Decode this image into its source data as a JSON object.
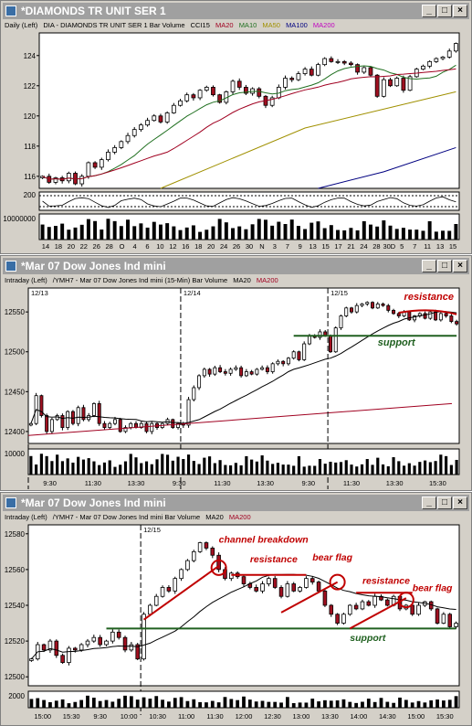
{
  "windows": [
    {
      "title": "*DIAMONDS TR UNIT SER 1",
      "info": [
        {
          "text": "Daily  (Left)",
          "color": "#000000"
        },
        {
          "text": "DIA - DIAMONDS TR UNIT SER 1  Bar  Volume",
          "color": "#000000"
        },
        {
          "text": "CCI15",
          "color": "#000000"
        },
        {
          "text": "MA20",
          "color": "#a00020"
        },
        {
          "text": "MA10",
          "color": "#207020"
        },
        {
          "text": "MA50",
          "color": "#a09000"
        },
        {
          "text": "MA100",
          "color": "#000080"
        },
        {
          "text": "MA200",
          "color": "#c000c0"
        }
      ]
    },
    {
      "title": "*Mar 07  Dow Jones Ind mini",
      "info": [
        {
          "text": "Intraday  (Left)",
          "color": "#000000"
        },
        {
          "text": "/YMH7 - Mar 07  Dow Jones Ind mini  (15-Min)  Bar  Volume",
          "color": "#000000"
        },
        {
          "text": "MA20",
          "color": "#000000"
        },
        {
          "text": "MA200",
          "color": "#a00020"
        }
      ]
    },
    {
      "title": "*Mar 07  Dow Jones Ind mini",
      "info": [
        {
          "text": "Intraday  (Left)",
          "color": "#000000"
        },
        {
          "text": "/YMH7 - Mar 07  Dow Jones Ind mini  Bar  Volume",
          "color": "#000000"
        },
        {
          "text": "MA20",
          "color": "#000000"
        },
        {
          "text": "MA200",
          "color": "#a00020"
        }
      ]
    }
  ],
  "window_buttons": {
    "minimize": "_",
    "maximize": "□",
    "close": "×"
  },
  "colors": {
    "up": "#ffffff",
    "down": "#a01020",
    "annotation": "#c00000",
    "support": "#206020"
  },
  "chart_data": [
    {
      "type": "candlestick",
      "title": "*DIAMONDS TR UNIT SER 1",
      "y_ticks": [
        116,
        118,
        120,
        122,
        124
      ],
      "ylim": [
        115.2,
        125.5
      ],
      "x_tick_labels": [
        "14",
        "18",
        "20",
        "22",
        "26",
        "28",
        "O",
        "4",
        "6",
        "10",
        "12",
        "16",
        "18",
        "20",
        "24",
        "26",
        "30",
        "N",
        "3",
        "7",
        "9",
        "13",
        "15",
        "17",
        "21",
        "24",
        "28",
        "30D",
        "5",
        "7",
        "11",
        "13",
        "15"
      ],
      "closes": [
        116.0,
        115.6,
        115.9,
        115.7,
        116.2,
        115.5,
        116.0,
        116.9,
        116.6,
        117.1,
        117.6,
        117.9,
        118.3,
        118.7,
        119.1,
        119.4,
        119.7,
        120.0,
        119.6,
        120.2,
        120.7,
        121.0,
        121.4,
        121.2,
        121.7,
        121.9,
        121.4,
        120.9,
        121.6,
        122.3,
        121.9,
        121.5,
        121.8,
        121.3,
        120.7,
        121.2,
        121.9,
        122.5,
        122.4,
        122.8,
        123.1,
        122.7,
        123.4,
        123.8,
        123.6,
        123.6,
        123.5,
        123.4,
        122.9,
        123.2,
        122.7,
        121.3,
        122.4,
        122.0,
        122.5,
        121.7,
        122.6,
        123.1,
        123.3,
        123.6,
        123.8,
        123.9,
        124.3,
        124.8
      ],
      "moving_averages": [
        {
          "name": "MA10",
          "color": "#207020"
        },
        {
          "name": "MA20",
          "color": "#a00020"
        },
        {
          "name": "MA50",
          "color": "#a09000",
          "values_from_to": [
            115.2,
            121.6
          ]
        },
        {
          "name": "MA100",
          "color": "#000080",
          "values_from_to": [
            115.2,
            117.9
          ]
        }
      ],
      "cci_label": "200",
      "volume_label": "10000000"
    },
    {
      "type": "candlestick",
      "title": "*Mar 07  Dow Jones Ind mini (15-Min)",
      "y_ticks": [
        12400,
        12450,
        12500,
        12550
      ],
      "ylim": [
        12385,
        12580
      ],
      "day_labels": [
        "12/13",
        "12/14",
        "12/15"
      ],
      "x_tick_labels": [
        "9:30",
        "11:30",
        "13:30",
        "9:30",
        "11:30",
        "13:30",
        "9:30",
        "11:30",
        "13:30",
        "15:30"
      ],
      "closes": [
        12410,
        12445,
        12420,
        12400,
        12415,
        12420,
        12405,
        12425,
        12410,
        12430,
        12415,
        12420,
        12435,
        12410,
        12405,
        12410,
        12415,
        12400,
        12405,
        12410,
        12405,
        12410,
        12400,
        12410,
        12405,
        12410,
        12415,
        12405,
        12410,
        12408,
        12440,
        12455,
        12470,
        12478,
        12472,
        12480,
        12475,
        12473,
        12478,
        12480,
        12470,
        12475,
        12472,
        12478,
        12480,
        12475,
        12485,
        12488,
        12485,
        12492,
        12500,
        12490,
        12510,
        12520,
        12518,
        12525,
        12520,
        12500,
        12530,
        12545,
        12555,
        12550,
        12558,
        12560,
        12562,
        12555,
        12560,
        12558,
        12552,
        12548,
        12545,
        12550,
        12540,
        12545,
        12548,
        12542,
        12550,
        12540,
        12548,
        12545,
        12538,
        12535
      ],
      "annotations": [
        {
          "text": "resistance",
          "color": "#c00000"
        },
        {
          "text": "support",
          "color": "#206020"
        }
      ],
      "volume_label": "10000"
    },
    {
      "type": "candlestick",
      "title": "*Mar 07  Dow Jones Ind mini",
      "y_ticks": [
        12500,
        12520,
        12540,
        12560,
        12580
      ],
      "ylim": [
        12495,
        12585
      ],
      "day_labels": [
        "12/15"
      ],
      "x_tick_labels": [
        "15:00",
        "15:30",
        "9:30",
        "10:00",
        "10:30",
        "11:00",
        "11:30",
        "12:00",
        "12:30",
        "13:00",
        "13:30",
        "14:00",
        "14:30",
        "15:00",
        "15:30"
      ],
      "closes": [
        12510,
        12518,
        12515,
        12520,
        12512,
        12508,
        12516,
        12515,
        12518,
        12520,
        12522,
        12518,
        12520,
        12525,
        12522,
        12515,
        12518,
        12510,
        12535,
        12540,
        12545,
        12550,
        12548,
        12555,
        12560,
        12565,
        12570,
        12575,
        12572,
        12568,
        12560,
        12555,
        12558,
        12556,
        12552,
        12550,
        12548,
        12552,
        12555,
        12550,
        12545,
        12552,
        12548,
        12550,
        12555,
        12553,
        12548,
        12540,
        12535,
        12530,
        12535,
        12540,
        12538,
        12542,
        12540,
        12545,
        12543,
        12540,
        12545,
        12538,
        12540,
        12535,
        12540,
        12542,
        12538,
        12530,
        12535,
        12528,
        12530
      ],
      "annotations": [
        {
          "text": "channel breakdown",
          "color": "#c00000"
        },
        {
          "text": "resistance",
          "color": "#c00000"
        },
        {
          "text": "bear flag",
          "color": "#c00000"
        },
        {
          "text": "resistance",
          "color": "#c00000"
        },
        {
          "text": "bear flag",
          "color": "#c00000"
        },
        {
          "text": "support",
          "color": "#206020"
        }
      ],
      "volume_label": "2000"
    }
  ]
}
